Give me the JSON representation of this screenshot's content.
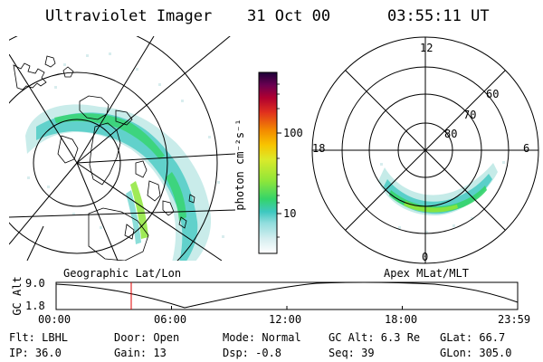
{
  "header": {
    "instrument": "Ultraviolet Imager",
    "date": "31 Oct 00",
    "time": "03:55:11 UT"
  },
  "colorbar": {
    "unit_label": "photon cm⁻²s⁻¹",
    "ticks": [
      {
        "label": "100",
        "value": 100
      },
      {
        "label": "10",
        "value": 10
      }
    ],
    "colors": [
      "#ffffff",
      "#d9eef0",
      "#9fe0e0",
      "#3ec8c0",
      "#34d46a",
      "#8ee63a",
      "#d8ea2a",
      "#f7c400",
      "#f38a00",
      "#e0301e",
      "#b00030",
      "#6a0050",
      "#1c0038"
    ]
  },
  "geo_panel": {
    "label": "Geographic Lat/Lon"
  },
  "apex_panel": {
    "label": "Apex MLat/MLT",
    "mlt_labels": {
      "top": "12",
      "left": "18",
      "right": "6",
      "bottom": "0"
    },
    "lat_labels": [
      "60",
      "70",
      "80"
    ]
  },
  "altitude_plot": {
    "ylabel": "GC Alt",
    "yticks": [
      "9.0",
      "1.8"
    ],
    "xticks": [
      "00:00",
      "06:00",
      "12:00",
      "18:00",
      "23:59"
    ],
    "marker_time": "03:55:11"
  },
  "status": {
    "flt": "Flt: LBHL",
    "ip": "IP: 36.0",
    "door": "Door: Open",
    "gain": "Gain: 13",
    "mode": "Mode: Normal",
    "dsp": "Dsp:   -0.8",
    "gc_alt": "GC Alt: 6.3 Re",
    "seq": "Seq: 39",
    "glat": "GLat:    66.7",
    "glon": "GLon: 305.0"
  }
}
